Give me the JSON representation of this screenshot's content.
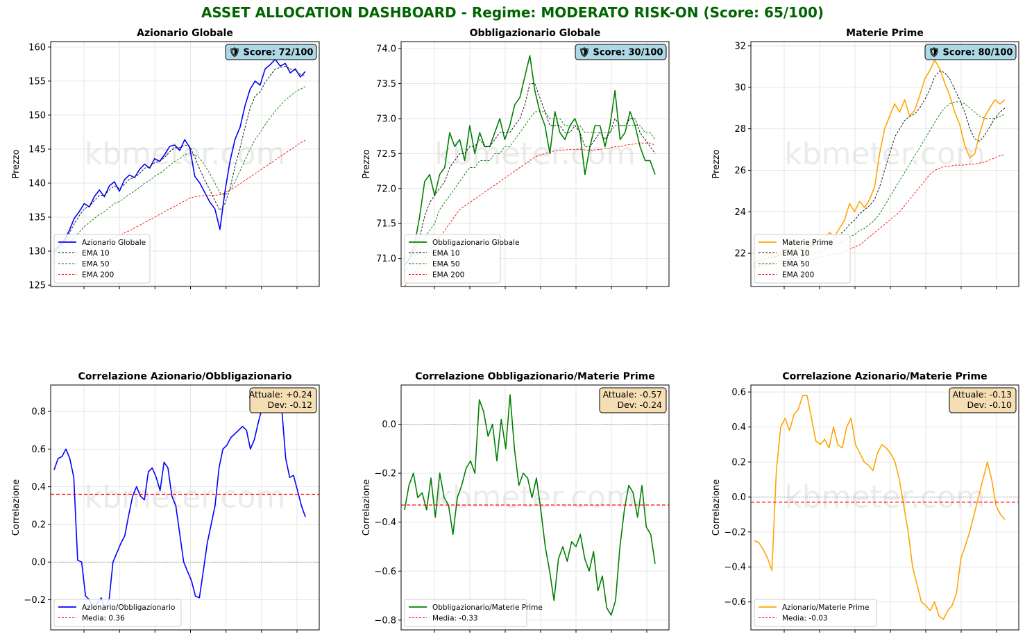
{
  "page": {
    "title": "ASSET ALLOCATION DASHBOARD - Regime: MODERATO RISK-ON  (Score: 65/100)",
    "title_color": "#006400",
    "watermark": "kbmeter.com"
  },
  "chart_data": [
    {
      "type": "line",
      "title": "Azionario Globale",
      "ylabel": "Prezzo",
      "ylim": [
        124.8,
        160.8
      ],
      "yticks": [
        125,
        130,
        135,
        140,
        145,
        150,
        155,
        160
      ],
      "score_badge": "🛡 Score: 72/100",
      "legend_position": "lower-left",
      "grid": true,
      "series": [
        {
          "name": "Azionario Globale",
          "color": "#0000ff",
          "style": "solid",
          "values": [
            130,
            130.8,
            131.6,
            133,
            134.8,
            135.8,
            137,
            136.5,
            138,
            139,
            138,
            139.6,
            140.2,
            138.8,
            140.5,
            141.2,
            140.8,
            142,
            142.8,
            142.2,
            143.6,
            143.2,
            144.2,
            145.4,
            145.6,
            144.8,
            146.4,
            145.2,
            141,
            140,
            138.6,
            137.2,
            136.2,
            133.2,
            138.8,
            143.2,
            146.4,
            148.2,
            151.4,
            153.8,
            155,
            154.4,
            156.8,
            157.4,
            158.2,
            157.2,
            157.6,
            156.2,
            156.8,
            155.6,
            156.4
          ]
        },
        {
          "name": "EMA 10",
          "color": "#000000",
          "style": "dashed",
          "values": [
            129.6,
            130.4,
            131.2,
            132.6,
            134,
            135.2,
            136.2,
            136.6,
            137.4,
            138.2,
            138.2,
            139,
            139.6,
            139.2,
            139.8,
            140.6,
            140.8,
            141.4,
            142.2,
            142.4,
            143,
            143.2,
            143.8,
            144.6,
            145.2,
            145.2,
            145.6,
            145.4,
            143.8,
            142,
            140.4,
            139,
            137.4,
            136,
            137,
            139.2,
            142.4,
            145.2,
            148.2,
            151,
            152.8,
            153.4,
            154.8,
            155.8,
            156.8,
            157,
            157.2,
            156.8,
            156.6,
            156,
            155.8
          ]
        },
        {
          "name": "EMA 50",
          "color": "#008000",
          "style": "dashed",
          "values": [
            129.4,
            129.8,
            130.4,
            131.2,
            132,
            132.8,
            133.6,
            134.2,
            134.8,
            135.4,
            135.8,
            136.4,
            137,
            137.3,
            137.8,
            138.4,
            138.8,
            139.4,
            140,
            140.4,
            141,
            141.4,
            142,
            142.6,
            143.2,
            143.6,
            144.2,
            144.4,
            144.2,
            143.6,
            142.6,
            141.4,
            140,
            138.6,
            138.2,
            139,
            140.2,
            141.8,
            143.4,
            145,
            146.4,
            147.4,
            148.6,
            149.6,
            150.6,
            151.4,
            152.2,
            152.8,
            153.4,
            153.8,
            154.2
          ]
        },
        {
          "name": "EMA 200",
          "color": "#ff0000",
          "style": "dashed",
          "values": [
            128.2,
            128.4,
            128.7,
            129,
            129.3,
            129.6,
            130,
            130.3,
            130.6,
            131,
            131.3,
            131.6,
            132,
            132.3,
            132.7,
            133,
            133.4,
            133.8,
            134.2,
            134.6,
            135,
            135.4,
            135.8,
            136.2,
            136.6,
            137,
            137.4,
            137.8,
            138,
            138.1,
            138.2,
            138.2,
            138.2,
            138.3,
            138.6,
            139,
            139.4,
            139.9,
            140.4,
            140.9,
            141.4,
            141.9,
            142.4,
            142.9,
            143.4,
            143.9,
            144.4,
            144.9,
            145.4,
            145.9,
            146.3
          ]
        }
      ]
    },
    {
      "type": "line",
      "title": "Obbligazionario Globale",
      "ylabel": "Prezzo",
      "ylim": [
        70.6,
        74.1
      ],
      "yticks": [
        71.0,
        71.5,
        72.0,
        72.5,
        73.0,
        73.5,
        74.0
      ],
      "score_badge": "🛡 Score: 30/100",
      "legend_position": "lower-left",
      "grid": true,
      "series": [
        {
          "name": "Obbligazionario Globale",
          "color": "#008000",
          "style": "solid",
          "values": [
            70.9,
            71.0,
            71.2,
            71.6,
            72.1,
            72.2,
            71.9,
            72.2,
            72.3,
            72.8,
            72.6,
            72.7,
            72.4,
            72.9,
            72.5,
            72.8,
            72.6,
            72.6,
            72.8,
            73.0,
            72.7,
            72.9,
            73.2,
            73.3,
            73.6,
            73.9,
            73.4,
            73.1,
            72.9,
            72.5,
            73.1,
            72.8,
            72.7,
            72.9,
            73.0,
            72.8,
            72.2,
            72.6,
            72.9,
            72.9,
            72.6,
            72.9,
            73.4,
            72.7,
            72.8,
            73.1,
            72.9,
            72.6,
            72.4,
            72.4,
            72.2
          ]
        },
        {
          "name": "EMA 10",
          "color": "#000000",
          "style": "dashed",
          "values": [
            70.9,
            71.0,
            71.1,
            71.3,
            71.6,
            71.8,
            71.9,
            72.0,
            72.1,
            72.3,
            72.4,
            72.5,
            72.5,
            72.6,
            72.6,
            72.7,
            72.6,
            72.6,
            72.7,
            72.8,
            72.8,
            72.8,
            72.9,
            73.0,
            73.2,
            73.5,
            73.5,
            73.3,
            73.1,
            72.9,
            72.9,
            72.9,
            72.8,
            72.8,
            72.9,
            72.8,
            72.6,
            72.6,
            72.7,
            72.8,
            72.7,
            72.8,
            73.0,
            72.9,
            72.9,
            73.0,
            73.0,
            72.8,
            72.7,
            72.6,
            72.5
          ]
        },
        {
          "name": "EMA 50",
          "color": "#008000",
          "style": "dashed",
          "values": [
            70.8,
            70.9,
            71.0,
            71.1,
            71.3,
            71.4,
            71.5,
            71.7,
            71.8,
            71.9,
            72.0,
            72.1,
            72.2,
            72.3,
            72.3,
            72.4,
            72.4,
            72.4,
            72.5,
            72.5,
            72.6,
            72.6,
            72.7,
            72.8,
            72.9,
            73.0,
            73.1,
            73.1,
            73.1,
            73.0,
            73.0,
            73.0,
            72.9,
            72.9,
            72.9,
            72.9,
            72.8,
            72.8,
            72.8,
            72.8,
            72.8,
            72.8,
            72.9,
            72.9,
            72.9,
            72.9,
            72.9,
            72.9,
            72.8,
            72.8,
            72.7
          ]
        },
        {
          "name": "EMA 200",
          "color": "#ff0000",
          "style": "dashed",
          "values": [
            70.6,
            70.7,
            70.8,
            70.9,
            71.0,
            71.1,
            71.2,
            71.3,
            71.4,
            71.5,
            71.6,
            71.7,
            71.75,
            71.8,
            71.85,
            71.9,
            71.95,
            72.0,
            72.05,
            72.1,
            72.15,
            72.2,
            72.25,
            72.3,
            72.35,
            72.4,
            72.45,
            72.48,
            72.5,
            72.52,
            72.54,
            72.55,
            72.55,
            72.56,
            72.56,
            72.56,
            72.55,
            72.55,
            72.55,
            72.56,
            72.57,
            72.58,
            72.6,
            72.6,
            72.62,
            72.63,
            72.64,
            72.65,
            72.65,
            72.65,
            72.62
          ]
        }
      ]
    },
    {
      "type": "line",
      "title": "Materie Prime",
      "ylabel": "Prezzo",
      "ylim": [
        20.4,
        32.2
      ],
      "yticks": [
        22,
        24,
        26,
        28,
        30,
        32
      ],
      "score_badge": "🛡 Score: 80/100",
      "legend_position": "lower-left",
      "grid": true,
      "series": [
        {
          "name": "Materie Prime",
          "color": "#ffa500",
          "style": "solid",
          "values": [
            21.5,
            21.7,
            21.9,
            22.0,
            21.8,
            22.0,
            22.3,
            22.1,
            22.2,
            22.3,
            22.1,
            22.4,
            22.6,
            22.4,
            22.7,
            23.0,
            22.8,
            23.2,
            23.6,
            24.4,
            24.0,
            24.5,
            24.2,
            24.6,
            25.2,
            26.8,
            28.0,
            28.6,
            29.2,
            28.8,
            29.4,
            28.6,
            28.9,
            29.6,
            30.4,
            30.8,
            31.3,
            30.9,
            30.2,
            29.6,
            28.8,
            28.2,
            27.2,
            26.6,
            26.8,
            27.8,
            28.6,
            29.0,
            29.4,
            29.2,
            29.4
          ]
        },
        {
          "name": "EMA 10",
          "color": "#000000",
          "style": "dashed",
          "values": [
            21.5,
            21.6,
            21.7,
            21.8,
            21.8,
            21.9,
            22.0,
            22.1,
            22.1,
            22.2,
            22.2,
            22.3,
            22.4,
            22.4,
            22.5,
            22.6,
            22.7,
            22.9,
            23.1,
            23.4,
            23.6,
            23.9,
            24.1,
            24.3,
            24.6,
            25.2,
            26.0,
            26.8,
            27.6,
            28.0,
            28.4,
            28.6,
            28.7,
            29.0,
            29.4,
            29.9,
            30.5,
            30.8,
            30.7,
            30.4,
            29.9,
            29.4,
            28.8,
            28.0,
            27.5,
            27.4,
            27.7,
            28.1,
            28.5,
            28.8,
            29.0
          ]
        },
        {
          "name": "EMA 50",
          "color": "#008000",
          "style": "dashed",
          "values": [
            21.4,
            21.4,
            21.5,
            21.5,
            21.6,
            21.6,
            21.7,
            21.7,
            21.8,
            21.8,
            21.9,
            21.9,
            22.0,
            22.1,
            22.2,
            22.3,
            22.4,
            22.5,
            22.6,
            22.8,
            22.9,
            23.1,
            23.2,
            23.4,
            23.6,
            23.9,
            24.3,
            24.7,
            25.1,
            25.5,
            25.9,
            26.3,
            26.7,
            27.1,
            27.5,
            27.9,
            28.3,
            28.7,
            29.0,
            29.2,
            29.3,
            29.3,
            29.2,
            29.0,
            28.8,
            28.6,
            28.5,
            28.5,
            28.5,
            28.6,
            28.7
          ]
        },
        {
          "name": "EMA 200",
          "color": "#ff0000",
          "style": "dashed",
          "values": [
            21.3,
            21.35,
            21.4,
            21.45,
            21.5,
            21.5,
            21.55,
            21.6,
            21.6,
            21.65,
            21.7,
            21.7,
            21.75,
            21.8,
            21.85,
            21.9,
            21.95,
            22.0,
            22.1,
            22.2,
            22.3,
            22.4,
            22.6,
            22.8,
            23.0,
            23.2,
            23.4,
            23.6,
            23.8,
            24.0,
            24.3,
            24.6,
            24.9,
            25.2,
            25.5,
            25.8,
            26.0,
            26.1,
            26.2,
            26.2,
            26.25,
            26.25,
            26.25,
            26.3,
            26.3,
            26.35,
            26.4,
            26.5,
            26.6,
            26.7,
            26.75
          ]
        }
      ]
    },
    {
      "type": "line",
      "title": "Correlazione Azionario/Obbligazionario",
      "ylabel": "Correlazione",
      "ylim": [
        -0.36,
        0.94
      ],
      "yticks": [
        -0.2,
        0.0,
        0.2,
        0.4,
        0.6,
        0.8
      ],
      "stats_box": [
        "Attuale: +0.24",
        "Dev: -0.12"
      ],
      "legend_position": "lower-left",
      "grid": true,
      "zero_line": 0.0,
      "series": [
        {
          "name": "Azionario/Obbligazionario",
          "color": "#0000ff",
          "style": "solid",
          "values": [
            0.49,
            0.55,
            0.56,
            0.6,
            0.55,
            0.45,
            0.01,
            0.0,
            -0.18,
            -0.2,
            -0.25,
            -0.22,
            -0.19,
            -0.25,
            -0.2,
            0.0,
            0.05,
            0.1,
            0.14,
            0.25,
            0.35,
            0.4,
            0.35,
            0.33,
            0.48,
            0.5,
            0.45,
            0.38,
            0.53,
            0.5,
            0.35,
            0.3,
            0.15,
            0.0,
            -0.05,
            -0.1,
            -0.18,
            -0.19,
            -0.05,
            0.1,
            0.2,
            0.3,
            0.5,
            0.6,
            0.62,
            0.66,
            0.68,
            0.7,
            0.72,
            0.7,
            0.6,
            0.65,
            0.74,
            0.82,
            0.86,
            0.88,
            0.84,
            0.82,
            0.81,
            0.55,
            0.45,
            0.46,
            0.38,
            0.3,
            0.24
          ]
        },
        {
          "name": "Media: 0.36",
          "color": "#ff0000",
          "style": "dashed",
          "constant": 0.36
        }
      ]
    },
    {
      "type": "line",
      "title": "Correlazione Obbligazionario/Materie Prime",
      "ylabel": "Correlazione",
      "ylim": [
        -0.84,
        0.16
      ],
      "yticks": [
        -0.8,
        -0.6,
        -0.4,
        -0.2,
        0.0
      ],
      "stats_box": [
        "Attuale: -0.57",
        "Dev: -0.24"
      ],
      "legend_position": "lower-left",
      "grid": true,
      "zero_line": 0.0,
      "series": [
        {
          "name": "Obbligazionario/Materie Prime",
          "color": "#008000",
          "style": "solid",
          "values": [
            -0.35,
            -0.25,
            -0.2,
            -0.3,
            -0.28,
            -0.35,
            -0.22,
            -0.38,
            -0.2,
            -0.3,
            -0.33,
            -0.45,
            -0.3,
            -0.25,
            -0.18,
            -0.15,
            -0.2,
            0.1,
            0.05,
            -0.05,
            0.0,
            -0.15,
            0.02,
            -0.1,
            0.12,
            -0.1,
            -0.25,
            -0.2,
            -0.22,
            -0.3,
            -0.22,
            -0.35,
            -0.5,
            -0.6,
            -0.72,
            -0.55,
            -0.5,
            -0.56,
            -0.48,
            -0.5,
            -0.45,
            -0.55,
            -0.6,
            -0.52,
            -0.68,
            -0.62,
            -0.75,
            -0.78,
            -0.72,
            -0.5,
            -0.35,
            -0.25,
            -0.28,
            -0.38,
            -0.25,
            -0.42,
            -0.45,
            -0.57
          ]
        },
        {
          "name": "Media: -0.33",
          "color": "#ff0000",
          "style": "dashed",
          "constant": -0.33
        }
      ]
    },
    {
      "type": "line",
      "title": "Correlazione Azionario/Materie Prime",
      "ylabel": "Correlazione",
      "ylim": [
        -0.76,
        0.64
      ],
      "yticks": [
        -0.6,
        -0.4,
        -0.2,
        0.0,
        0.2,
        0.4,
        0.6
      ],
      "stats_box": [
        "Attuale: -0.13",
        "Dev: -0.10"
      ],
      "legend_position": "lower-left",
      "grid": true,
      "zero_line": 0.0,
      "series": [
        {
          "name": "Azionario/Materie Prime",
          "color": "#ffa500",
          "style": "solid",
          "values": [
            -0.25,
            -0.26,
            -0.3,
            -0.35,
            -0.42,
            0.15,
            0.4,
            0.45,
            0.38,
            0.47,
            0.5,
            0.58,
            0.58,
            0.45,
            0.32,
            0.3,
            0.33,
            0.28,
            0.4,
            0.3,
            0.28,
            0.4,
            0.45,
            0.3,
            0.25,
            0.2,
            0.18,
            0.15,
            0.25,
            0.3,
            0.28,
            0.25,
            0.2,
            0.1,
            -0.05,
            -0.2,
            -0.4,
            -0.5,
            -0.6,
            -0.62,
            -0.65,
            -0.6,
            -0.68,
            -0.7,
            -0.65,
            -0.62,
            -0.55,
            -0.35,
            -0.28,
            -0.2,
            -0.1,
            0.0,
            0.1,
            0.2,
            0.1,
            -0.05,
            -0.1,
            -0.13
          ]
        },
        {
          "name": "Media: -0.03",
          "color": "#ff0000",
          "style": "dashed",
          "constant": -0.03
        }
      ]
    }
  ]
}
